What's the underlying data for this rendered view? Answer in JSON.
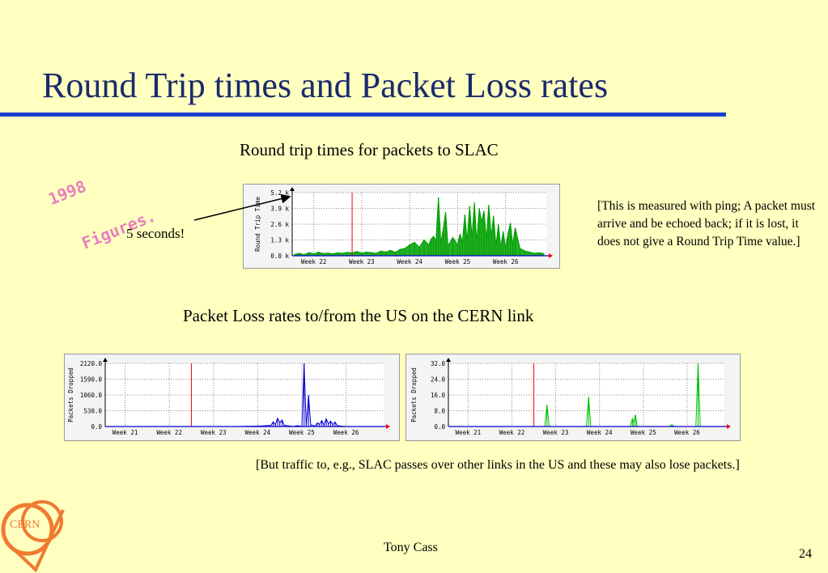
{
  "slide": {
    "title": "Round Trip times and Packet Loss rates",
    "stamp_line1": "1998",
    "stamp_line2": "Figures.",
    "rtt_caption": "Round trip times for packets to SLAC",
    "rtt_note": "[This is measured with ping; A packet must arrive and be echoed back; if it is lost, it does not give a Round Trip Time value.]",
    "five_seconds_label": "5 seconds!",
    "loss_caption": "Packet Loss rates to/from the US on the CERN link",
    "bottom_note": "[But traffic to, e.g., SLAC passes over other links in the US and these may also lose packets.]",
    "author": "Tony Cass",
    "page_number": "24",
    "logo_text": "CERN"
  },
  "colors": {
    "title": "#1a2a6c",
    "rule": "#1f3fd0",
    "stamp": "#e880c0",
    "rtt_series": "#00a000",
    "loss_us_series": "#0000d0",
    "loss_other_series": "#00c000",
    "marker": "#ff0000",
    "logo": "#f07a30"
  },
  "chart_data": [
    {
      "id": "rtt",
      "type": "area",
      "title": "",
      "ylabel": "Round Trip Time",
      "xlabel": "",
      "ylim": [
        0,
        5200
      ],
      "yticks": [
        0,
        1300,
        2600,
        3900,
        5200
      ],
      "ytick_labels": [
        "0.0 k",
        "1.3 k",
        "2.6 k",
        "3.9 k",
        "5.2 k"
      ],
      "xlim": [
        21.55,
        26.85
      ],
      "xticks": [
        22,
        23,
        24,
        25,
        26
      ],
      "xtick_labels": [
        "Week 22",
        "Week 23",
        "Week 24",
        "Week 25",
        "Week 26"
      ],
      "marker_x": 22.8,
      "grid": true,
      "series": [
        {
          "x": [
            21.6,
            21.7,
            21.8,
            21.9,
            22.0,
            22.1,
            22.2,
            22.3,
            22.4,
            22.5,
            22.6,
            22.7,
            22.8,
            22.9,
            23.0,
            23.1,
            23.2,
            23.3,
            23.4,
            23.5,
            23.6,
            23.7,
            23.8,
            23.9,
            24.0,
            24.1,
            24.2,
            24.3,
            24.4,
            24.45,
            24.5,
            24.55,
            24.6,
            24.65,
            24.7,
            24.75,
            24.8,
            24.9,
            25.0,
            25.05,
            25.1,
            25.15,
            25.2,
            25.25,
            25.3,
            25.35,
            25.4,
            25.45,
            25.5,
            25.55,
            25.6,
            25.65,
            25.7,
            25.75,
            25.8,
            25.85,
            25.9,
            25.95,
            26.0,
            26.05,
            26.1,
            26.15,
            26.2,
            26.3,
            26.4,
            26.5,
            26.6,
            26.7,
            26.8
          ],
          "values": [
            120,
            200,
            90,
            260,
            150,
            300,
            180,
            220,
            160,
            250,
            200,
            280,
            240,
            350,
            220,
            300,
            260,
            200,
            380,
            300,
            450,
            280,
            520,
            600,
            900,
            1100,
            700,
            1300,
            900,
            1400,
            1600,
            1200,
            4800,
            1000,
            2200,
            3600,
            800,
            1500,
            900,
            1800,
            1100,
            3400,
            1200,
            4100,
            1500,
            4400,
            1100,
            3900,
            2800,
            3700,
            1300,
            4200,
            1600,
            3300,
            800,
            2600,
            700,
            2000,
            600,
            1800,
            2700,
            900,
            2300,
            600,
            400,
            300,
            200,
            250,
            180
          ]
        }
      ]
    },
    {
      "id": "loss_us",
      "type": "line",
      "title": "",
      "ylabel": "Packets Dropped",
      "xlabel": "",
      "ylim": [
        0,
        2120
      ],
      "yticks": [
        0,
        530,
        1060,
        1590,
        2120
      ],
      "ytick_labels": [
        "0.0",
        "530.0",
        "1060.0",
        "1590.0",
        "2120.0"
      ],
      "xlim": [
        20.55,
        26.85
      ],
      "xticks": [
        21,
        22,
        23,
        24,
        25,
        26
      ],
      "xtick_labels": [
        "Week 21",
        "Week 22",
        "Week 23",
        "Week 24",
        "Week 25",
        "Week 26"
      ],
      "marker_x": 22.5,
      "grid": true,
      "series": [
        {
          "x": [
            20.6,
            21.0,
            21.5,
            22.0,
            22.5,
            23.0,
            23.5,
            23.9,
            24.1,
            24.3,
            24.35,
            24.4,
            24.45,
            24.5,
            24.55,
            24.6,
            24.7,
            24.8,
            24.9,
            25.0,
            25.05,
            25.1,
            25.15,
            25.2,
            25.3,
            25.35,
            25.4,
            25.45,
            25.5,
            25.55,
            25.6,
            25.65,
            25.7,
            25.75,
            25.8,
            25.9,
            26.0,
            26.5,
            26.8
          ],
          "values": [
            0,
            0,
            0,
            0,
            0,
            0,
            0,
            10,
            20,
            40,
            160,
            60,
            280,
            120,
            220,
            40,
            20,
            0,
            30,
            0,
            2120,
            0,
            1050,
            60,
            20,
            120,
            70,
            200,
            40,
            260,
            90,
            180,
            60,
            150,
            30,
            10,
            0,
            0,
            0
          ]
        }
      ]
    },
    {
      "id": "loss_other",
      "type": "line",
      "title": "",
      "ylabel": "Packets Dropped",
      "xlabel": "",
      "ylim": [
        0,
        32
      ],
      "yticks": [
        0,
        8,
        16,
        24,
        32
      ],
      "ytick_labels": [
        "0.0",
        "8.0",
        "16.0",
        "24.0",
        "32.0"
      ],
      "xlim": [
        20.55,
        26.85
      ],
      "xticks": [
        21,
        22,
        23,
        24,
        25,
        26
      ],
      "xtick_labels": [
        "Week 21",
        "Week 22",
        "Week 23",
        "Week 24",
        "Week 25",
        "Week 26"
      ],
      "marker_x": 22.5,
      "grid": true,
      "series": [
        {
          "x": [
            20.6,
            21.5,
            22.0,
            22.6,
            22.75,
            22.8,
            22.85,
            23.5,
            23.7,
            23.75,
            23.8,
            24.5,
            24.7,
            24.75,
            24.78,
            24.82,
            24.86,
            24.9,
            25.5,
            25.6,
            25.65,
            25.7,
            26.0,
            26.2,
            26.25,
            26.3,
            26.35,
            26.5,
            26.8
          ],
          "values": [
            0,
            0,
            0,
            0,
            0,
            11,
            0,
            0,
            0,
            15,
            0,
            0,
            0,
            4,
            2,
            6,
            0,
            0,
            0,
            0,
            1,
            0,
            0,
            0,
            32,
            0,
            0,
            0,
            0
          ]
        }
      ]
    }
  ]
}
